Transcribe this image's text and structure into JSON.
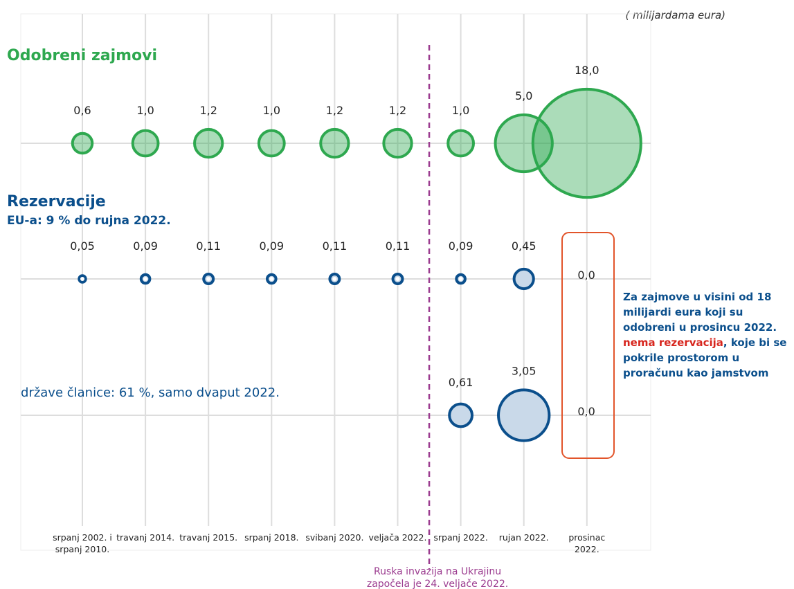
{
  "unit_note": "( milijardama eura)",
  "chart_data": {
    "type": "bubble",
    "categories": [
      "srpanj 2002. i srpanj 2010.",
      "travanj 2014.",
      "travanj 2015.",
      "srpanj 2018.",
      "svibanj 2020.",
      "veljača 2022.",
      "srpanj 2022.",
      "rujan 2022.",
      "prosinac 2022."
    ],
    "series": [
      {
        "name": "Odobreni zajmovi",
        "color": "#2ea84f",
        "values": [
          0.6,
          1.0,
          1.2,
          1.0,
          1.2,
          1.2,
          1.0,
          5.0,
          18.0
        ],
        "value_labels": [
          "0,6",
          "1,0",
          "1,2",
          "1,0",
          "1,2",
          "1,2",
          "1,0",
          "5,0",
          "18,0"
        ]
      },
      {
        "name": "Rezervacije",
        "description": "EU-a: 9 % do rujna 2022.",
        "color": "#0b4f8c",
        "values": [
          0.05,
          0.09,
          0.11,
          0.09,
          0.11,
          0.11,
          0.09,
          0.45,
          0.0
        ],
        "value_labels": [
          "0,05",
          "0,09",
          "0,11",
          "0,09",
          "0,11",
          "0,11",
          "0,09",
          "0,45",
          "0,0"
        ]
      },
      {
        "name": "države članice:  61 %, samo dvaput 2022.",
        "color": "#0b4f8c",
        "values": [
          null,
          null,
          null,
          null,
          null,
          null,
          0.61,
          3.05,
          0.0
        ],
        "value_labels": [
          null,
          null,
          null,
          null,
          null,
          null,
          "0,61",
          "3,05",
          "0,0"
        ]
      }
    ],
    "annotation": [
      "Ruska invazija na Ukrajinu",
      "započela je 24. veljače 2022."
    ]
  },
  "note": {
    "parts": [
      "Za zajmove u visini od 18 milijardi eura koji su odobreni u prosincu 2022. ",
      "nema rezervacija",
      ", koje bi se pokrile prostorom u proračunu kao jamstvom"
    ],
    "highlight_color": "#d7261e",
    "color": "#0b4f8c"
  }
}
